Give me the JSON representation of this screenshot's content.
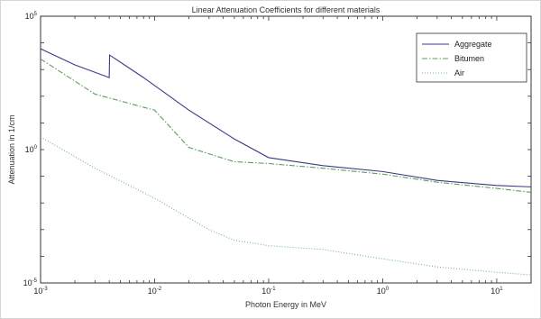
{
  "chart_data": {
    "type": "line",
    "title": "Linear Attenuation Coefficients for different materials",
    "xlabel": "Photon Energy in MeV",
    "ylabel": "Attenuation in 1/cm",
    "xscale": "log",
    "yscale": "log",
    "xlim": [
      0.001,
      20
    ],
    "ylim": [
      1e-05,
      100000
    ],
    "x_ticks": [
      {
        "value": 0.001,
        "base": "10",
        "exp": "-3"
      },
      {
        "value": 0.01,
        "base": "10",
        "exp": "-2"
      },
      {
        "value": 0.1,
        "base": "10",
        "exp": "-1"
      },
      {
        "value": 1,
        "base": "10",
        "exp": "0"
      },
      {
        "value": 10,
        "base": "10",
        "exp": "1"
      }
    ],
    "y_ticks": [
      {
        "value": 1e-05,
        "base": "10",
        "exp": "-5"
      },
      {
        "value": 1,
        "base": "10",
        "exp": "0"
      },
      {
        "value": 100000,
        "base": "10",
        "exp": "5"
      }
    ],
    "legend_position": "top-right",
    "grid": false,
    "series": [
      {
        "name": "Aggregate",
        "color": "#3a3a8c",
        "dash": "solid",
        "points": [
          [
            0.001,
            6000
          ],
          [
            0.002,
            1500
          ],
          [
            0.004,
            500
          ],
          [
            0.00403,
            3500
          ],
          [
            0.008,
            500
          ],
          [
            0.02,
            30
          ],
          [
            0.05,
            2.5
          ],
          [
            0.1,
            0.5
          ],
          [
            0.3,
            0.25
          ],
          [
            1,
            0.15
          ],
          [
            3,
            0.07
          ],
          [
            10,
            0.045
          ],
          [
            20,
            0.04
          ]
        ]
      },
      {
        "name": "Bitumen",
        "color": "#5c9e5c",
        "dash": "dashdot",
        "points": [
          [
            0.001,
            2500
          ],
          [
            0.003,
            120
          ],
          [
            0.01,
            30
          ],
          [
            0.02,
            1.2
          ],
          [
            0.05,
            0.35
          ],
          [
            0.1,
            0.3
          ],
          [
            0.3,
            0.2
          ],
          [
            1,
            0.12
          ],
          [
            3,
            0.06
          ],
          [
            10,
            0.035
          ],
          [
            20,
            0.025
          ]
        ]
      },
      {
        "name": "Air",
        "color": "#6fb39a",
        "dash": "dotted",
        "points": [
          [
            0.001,
            3
          ],
          [
            0.003,
            0.2
          ],
          [
            0.01,
            0.015
          ],
          [
            0.03,
            0.001
          ],
          [
            0.05,
            0.0004
          ],
          [
            0.1,
            0.00025
          ],
          [
            0.3,
            0.00018
          ],
          [
            1,
            8e-05
          ],
          [
            3,
            4e-05
          ],
          [
            10,
            2.5e-05
          ],
          [
            20,
            2e-05
          ]
        ]
      }
    ]
  }
}
